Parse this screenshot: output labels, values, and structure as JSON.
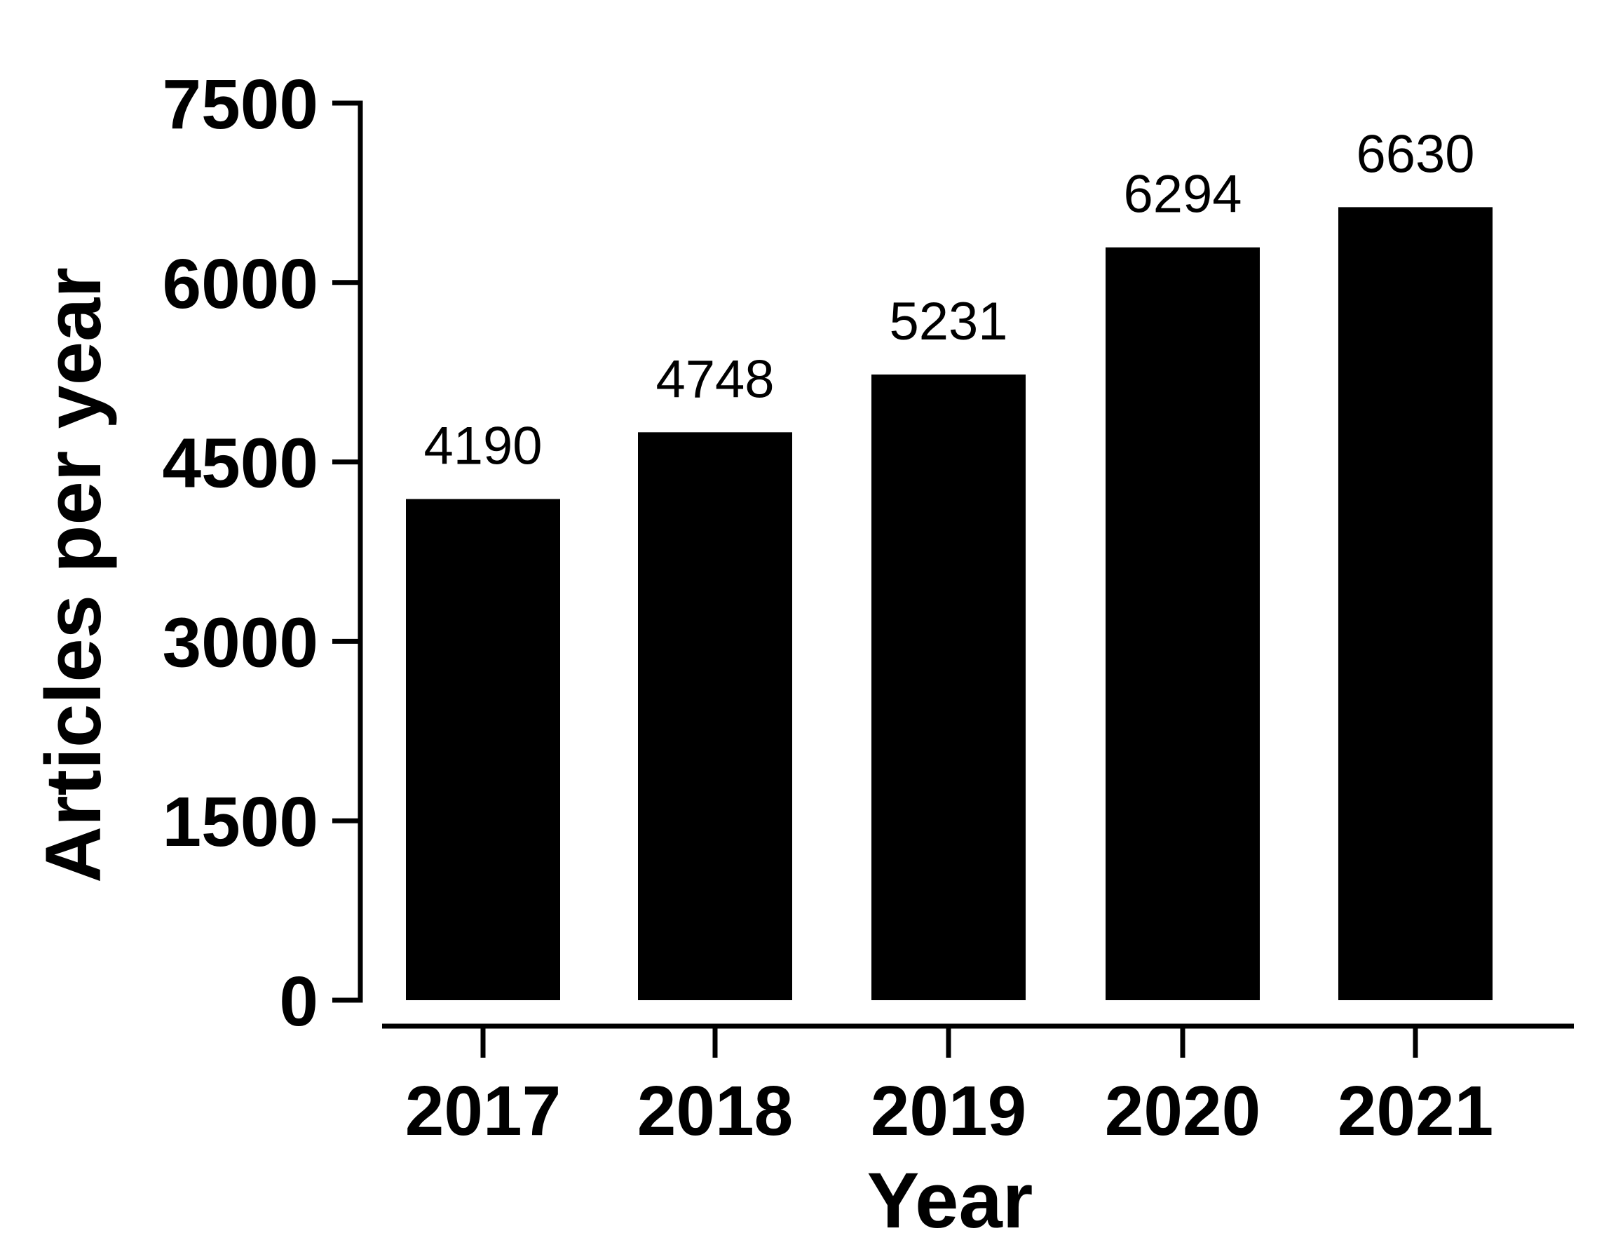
{
  "chart_data": {
    "type": "bar",
    "categories": [
      "2017",
      "2018",
      "2019",
      "2020",
      "2021"
    ],
    "values": [
      4190,
      4748,
      5231,
      6294,
      6630
    ],
    "data_labels": [
      "4190",
      "4748",
      "5231",
      "6294",
      "6630"
    ],
    "xlabel": "Year",
    "ylabel": "Articles per year",
    "ylim": [
      0,
      7500
    ],
    "yticks": [
      0,
      1500,
      3000,
      4500,
      6000,
      7500
    ],
    "ytick_labels": [
      "0",
      "1500",
      "3000",
      "4500",
      "6000",
      "7500"
    ],
    "grid": false,
    "legend": "none",
    "bar_color": "#000000"
  }
}
